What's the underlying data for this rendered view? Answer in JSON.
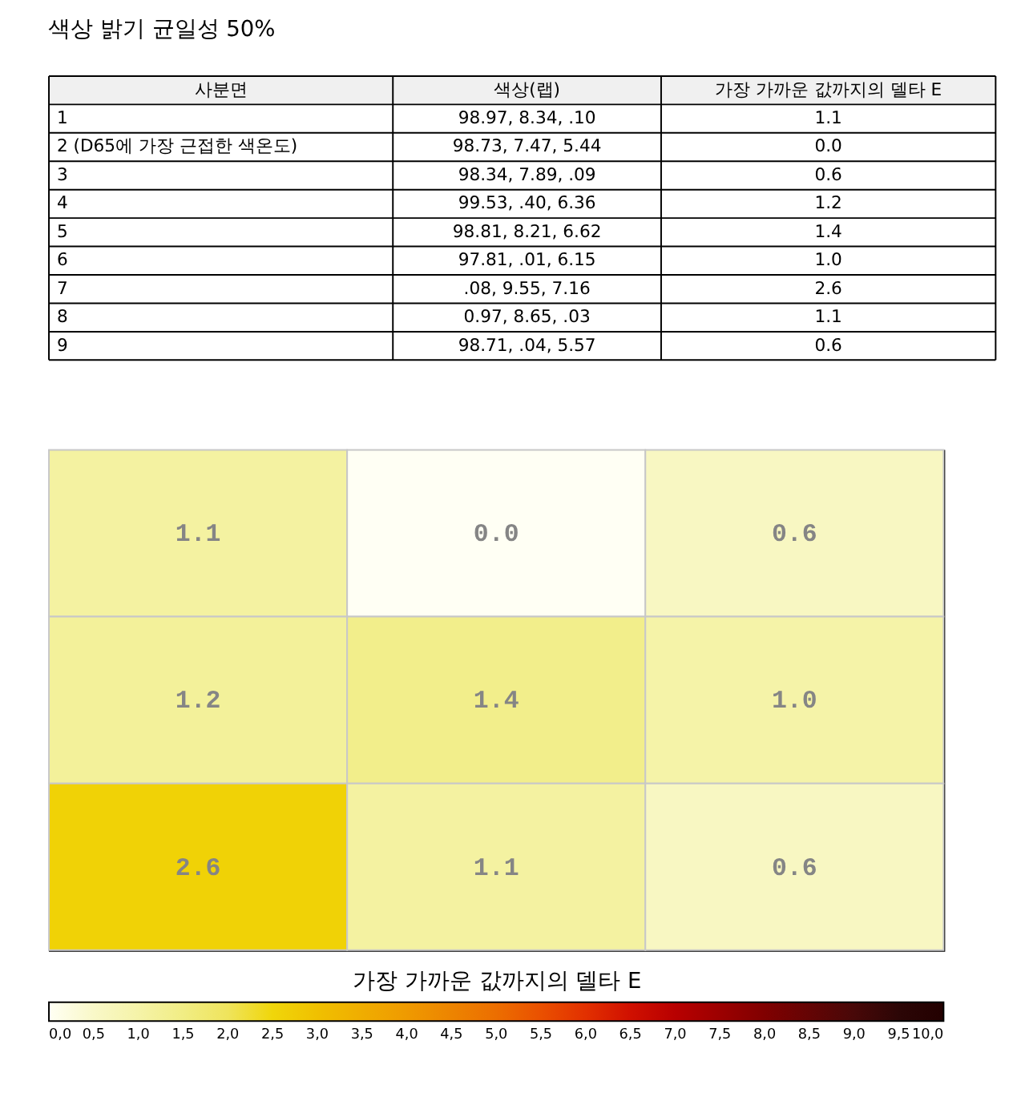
{
  "chart_data": [
    {
      "type": "other",
      "title": "색상 밝기 균일성 50%",
      "annotations": [
        "사분면",
        "색상(랩)",
        "가장 가까운 값까지의 델타 E",
        "1",
        "98.97, 8.34, .10",
        "1.1",
        "2 (D65에 가장 근접한 색온도)",
        "98.73, 7.47, 5.44",
        "0.0",
        "3",
        "98.34, 7.89, .09",
        "0.6",
        "4",
        "99.53, .40, 6.36",
        "1.2",
        "5",
        "98.81, 8.21, 6.62",
        "1.4",
        "6",
        "97.81, .01, 6.15",
        "1.0",
        "7",
        ".08, 9.55, 7.16",
        "2.6",
        "8",
        "0.97, 8.65, .03",
        "1.1",
        "9",
        "98.71, .04, 5.57",
        "0.6"
      ]
    },
    {
      "type": "heatmap",
      "categories": [
        null,
        null,
        null
      ],
      "y_categories": [
        null,
        null,
        null
      ],
      "cells": [
        [
          1.1,
          0.0,
          0.6
        ],
        [
          1.2,
          1.4,
          1.0
        ],
        [
          2.6,
          1.1,
          0.6
        ]
      ],
      "cell_labels": [
        [
          "1.1",
          "0.0",
          "0.6"
        ],
        [
          "1.2",
          "1.4",
          "1.0"
        ],
        [
          "2.6",
          "1.1",
          "0.6"
        ]
      ],
      "tick_labels": false,
      "clabel": "가장 가까운 값까지의 델타 E",
      "clim": [
        0,
        10
      ],
      "cticks": [
        {
          "value": 0,
          "label": "0,0"
        },
        {
          "value": 0.5,
          "label": "0,5"
        },
        {
          "value": 1,
          "label": "1,0"
        },
        {
          "value": 1.5,
          "label": "1,5"
        },
        {
          "value": 2,
          "label": "2,0"
        },
        {
          "value": 2.5,
          "label": "2,5"
        },
        {
          "value": 3,
          "label": "3,0"
        },
        {
          "value": 3.5,
          "label": "3,5"
        },
        {
          "value": 4,
          "label": "4,0"
        },
        {
          "value": 4.5,
          "label": "4,5"
        },
        {
          "value": 5,
          "label": "5,0"
        },
        {
          "value": 5.5,
          "label": "5,5"
        },
        {
          "value": 6,
          "label": "6,0"
        },
        {
          "value": 6.5,
          "label": "6,5"
        },
        {
          "value": 7,
          "label": "7,0"
        },
        {
          "value": 7.5,
          "label": "7,5"
        },
        {
          "value": 8,
          "label": "8,0"
        },
        {
          "value": 8.5,
          "label": "8,5"
        },
        {
          "value": 9,
          "label": "9,0"
        },
        {
          "value": 9.5,
          "label": "9,5"
        },
        {
          "value": 10,
          "label": "10,0"
        }
      ]
    }
  ]
}
